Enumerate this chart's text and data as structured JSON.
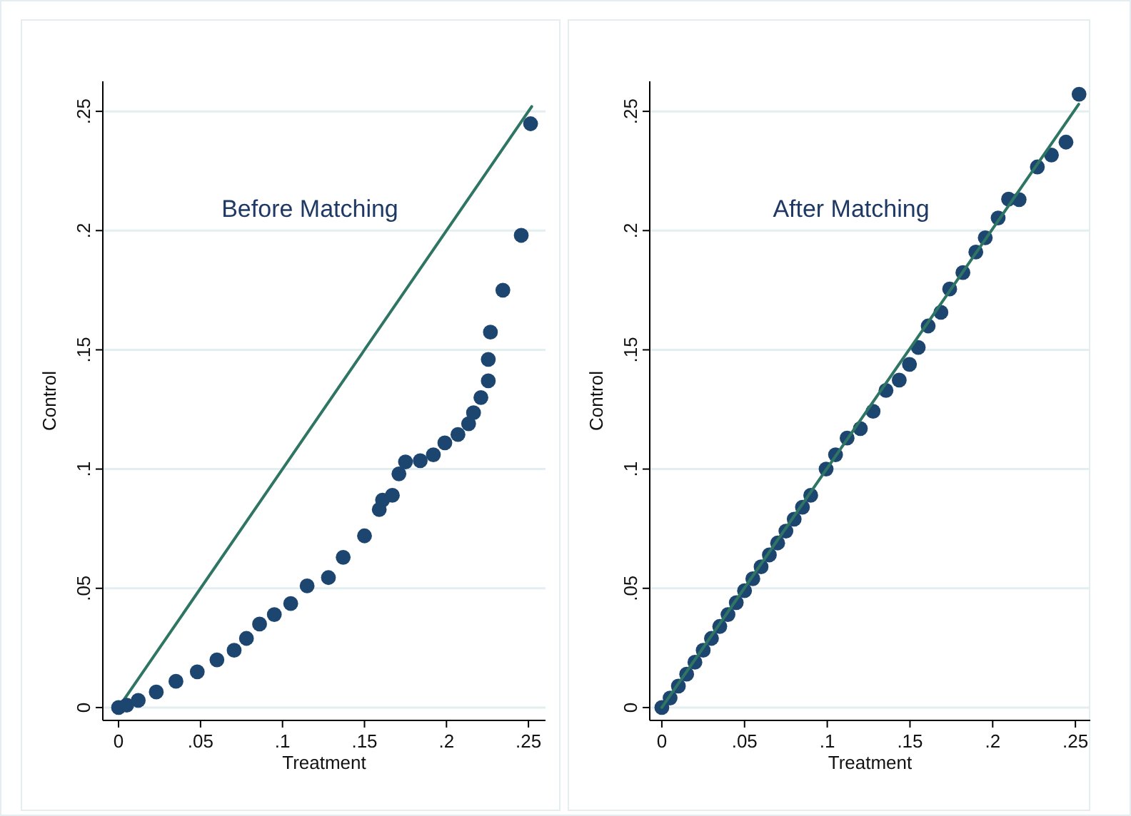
{
  "chart_data": [
    {
      "type": "scatter",
      "title": "Before Matching",
      "xlabel": "Treatment",
      "ylabel": "Control",
      "xlim": [
        -0.0096,
        0.2604
      ],
      "ylim": [
        -0.0054,
        0.2626
      ],
      "xticks": [
        0,
        {
          "value": 0.05,
          "label": ".05"
        },
        {
          "value": 0.1,
          "label": ".1"
        },
        {
          "value": 0.15,
          "label": ".15"
        },
        {
          "value": 0.2,
          "label": ".2"
        },
        {
          "value": 0.25,
          "label": ".25"
        }
      ],
      "yticks": [
        0,
        {
          "value": 0.05,
          "label": ".05"
        },
        {
          "value": 0.1,
          "label": ".1"
        },
        {
          "value": 0.15,
          "label": ".15"
        },
        {
          "value": 0.2,
          "label": ".2"
        },
        {
          "value": 0.25,
          "label": ".25"
        }
      ],
      "grid": "y",
      "series": [
        {
          "type": "line",
          "color": "#2f7563",
          "x": [
            0,
            0.252
          ],
          "values": [
            0,
            0.252
          ]
        },
        {
          "marker": "circle",
          "color": "#1c4570",
          "x": [
            0,
            0.005,
            0.012,
            0.023,
            0.035,
            0.048,
            0.06,
            0.0705,
            0.078,
            0.086,
            0.095,
            0.105,
            0.115,
            0.128,
            0.137,
            0.15,
            0.159,
            0.161,
            0.167,
            0.171,
            0.175,
            0.184,
            0.192,
            0.199,
            0.207,
            0.2135,
            0.2165,
            0.221,
            0.2255,
            0.2255,
            0.2268,
            0.2344,
            0.2456,
            0.2513
          ],
          "values": [
            0,
            0.001,
            0.003,
            0.0065,
            0.011,
            0.015,
            0.02,
            0.024,
            0.029,
            0.035,
            0.039,
            0.0436,
            0.051,
            0.0545,
            0.063,
            0.072,
            0.083,
            0.087,
            0.089,
            0.098,
            0.103,
            0.1035,
            0.106,
            0.111,
            0.1145,
            0.119,
            0.1236,
            0.13,
            0.137,
            0.146,
            0.1574,
            0.175,
            0.198,
            0.2448
          ]
        }
      ]
    },
    {
      "type": "scatter",
      "title": "After Matching",
      "xlabel": "Treatment",
      "ylabel": "Control",
      "xlim": [
        -0.0073,
        0.259
      ],
      "ylim": [
        -0.0054,
        0.2626
      ],
      "xticks": [
        0,
        {
          "value": 0.05,
          "label": ".05"
        },
        {
          "value": 0.1,
          "label": ".1"
        },
        {
          "value": 0.15,
          "label": ".15"
        },
        {
          "value": 0.2,
          "label": ".2"
        },
        {
          "value": 0.25,
          "label": ".25"
        }
      ],
      "yticks": [
        0,
        {
          "value": 0.05,
          "label": ".05"
        },
        {
          "value": 0.1,
          "label": ".1"
        },
        {
          "value": 0.15,
          "label": ".15"
        },
        {
          "value": 0.2,
          "label": ".2"
        },
        {
          "value": 0.25,
          "label": ".25"
        }
      ],
      "grid": "y",
      "series": [
        {
          "marker": "circle",
          "color": "#1c4570",
          "x": [
            0,
            0.005,
            0.01,
            0.015,
            0.02,
            0.025,
            0.03,
            0.035,
            0.04,
            0.045,
            0.05,
            0.055,
            0.06,
            0.065,
            0.07,
            0.075,
            0.08,
            0.085,
            0.09,
            0.0993,
            0.105,
            0.112,
            0.12,
            0.1277,
            0.1355,
            0.1435,
            0.1497,
            0.155,
            0.161,
            0.1687,
            0.174,
            0.182,
            0.1898,
            0.1955,
            0.2033,
            0.2096,
            0.216,
            0.227,
            0.2355,
            0.2443,
            0.2522
          ],
          "values": [
            0,
            0.004,
            0.009,
            0.014,
            0.019,
            0.024,
            0.029,
            0.034,
            0.039,
            0.044,
            0.049,
            0.054,
            0.059,
            0.064,
            0.069,
            0.074,
            0.079,
            0.084,
            0.089,
            0.1,
            0.106,
            0.113,
            0.117,
            0.1242,
            0.133,
            0.1373,
            0.1439,
            0.151,
            0.16,
            0.1657,
            0.1755,
            0.1824,
            0.191,
            0.197,
            0.2053,
            0.2132,
            0.213,
            0.2267,
            0.2317,
            0.2371,
            0.2572
          ]
        },
        {
          "type": "line",
          "color": "#2f7563",
          "x": [
            0,
            0.252
          ],
          "values": [
            0,
            0.253
          ]
        }
      ]
    }
  ]
}
